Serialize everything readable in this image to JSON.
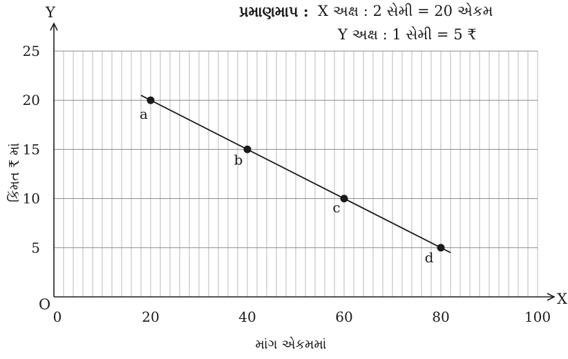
{
  "chart_data": {
    "type": "line",
    "x": [
      20,
      40,
      60,
      80
    ],
    "series": [
      {
        "values": [
          20,
          15,
          10,
          5
        ],
        "point_labels": [
          "a",
          "b",
          "c",
          "d"
        ]
      }
    ],
    "line_extent_x": [
      18,
      82
    ],
    "xlim": [
      0,
      100
    ],
    "ylim": [
      0,
      25
    ],
    "x_ticks": [
      "0",
      "20",
      "40",
      "60",
      "80",
      "100"
    ],
    "y_ticks": [
      "5",
      "10",
      "15",
      "20",
      "25"
    ],
    "x_axis_letter": "X",
    "y_axis_letter": "Y",
    "origin_label": "O",
    "xlabel": "માંગ એકમમાં",
    "ylabel": "કિંમત ₹ માં",
    "grid": true,
    "line_color": "#1a1a1a"
  },
  "scale_note": {
    "title": "પ્રમાણમાપ :",
    "x_line": "X અક્ષ  : 2 સેમી  = 20 એકમ",
    "y_line": "Y અક્ષ  : 1 સેમી  = 5 ₹"
  }
}
